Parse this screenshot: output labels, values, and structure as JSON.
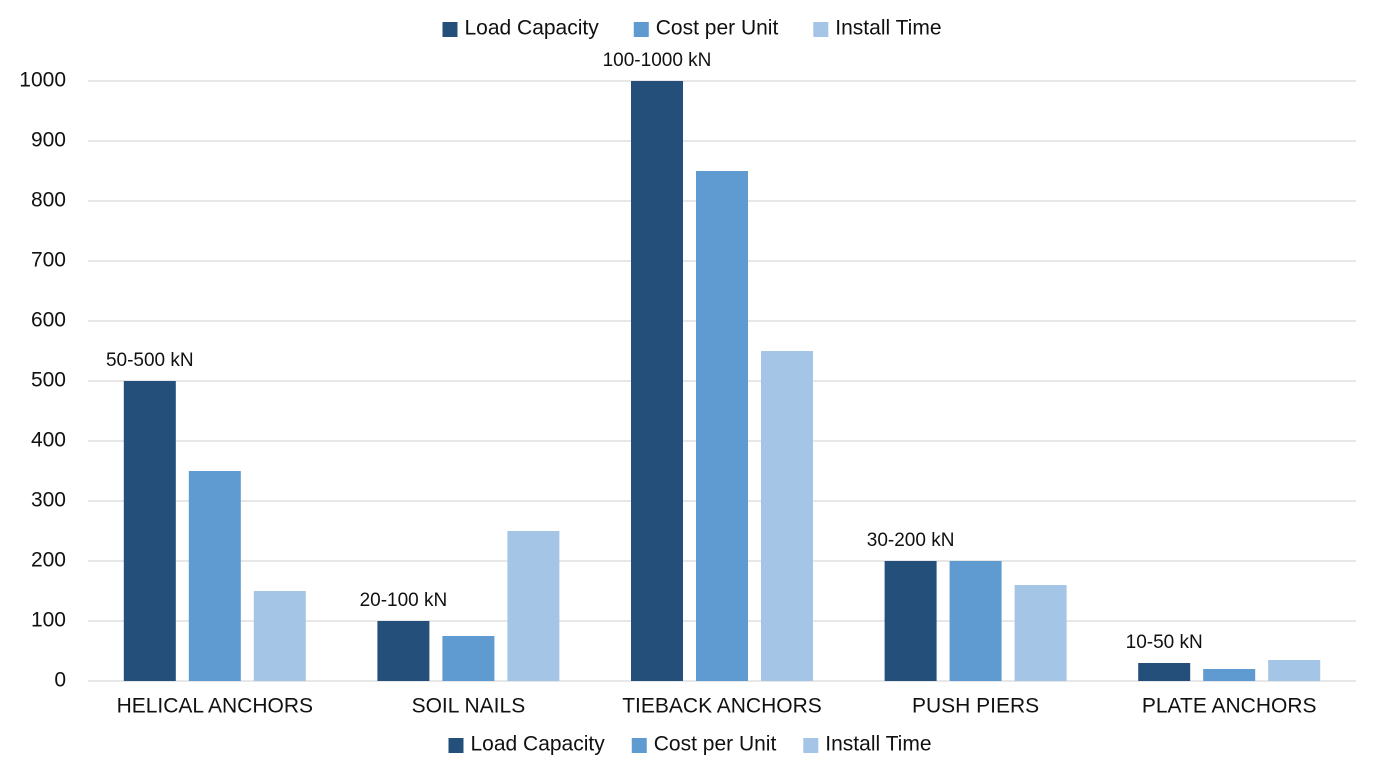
{
  "chart_data": {
    "type": "bar",
    "categories": [
      "HELICAL ANCHORS",
      "SOIL NAILS",
      "TIEBACK ANCHORS",
      "PUSH PIERS",
      "PLATE ANCHORS"
    ],
    "series": [
      {
        "name": "Load Capacity",
        "color": "#234f7a",
        "values": [
          500,
          100,
          1000,
          200,
          30
        ],
        "value_labels": [
          "50-500 kN",
          "20-100 kN",
          "100-1000 kN",
          "30-200 kN",
          "10-50 kN"
        ]
      },
      {
        "name": "Cost per Unit",
        "color": "#5f9bd1",
        "values": [
          350,
          75,
          850,
          200,
          20
        ]
      },
      {
        "name": "Install Time",
        "color": "#a4c5e5",
        "values": [
          150,
          250,
          550,
          160,
          35
        ]
      }
    ],
    "ylim": [
      0,
      1000
    ],
    "yticks": [
      0,
      100,
      200,
      300,
      400,
      500,
      600,
      700,
      800,
      900,
      1000
    ],
    "grid": true,
    "legend": [
      "top",
      "bottom"
    ]
  }
}
